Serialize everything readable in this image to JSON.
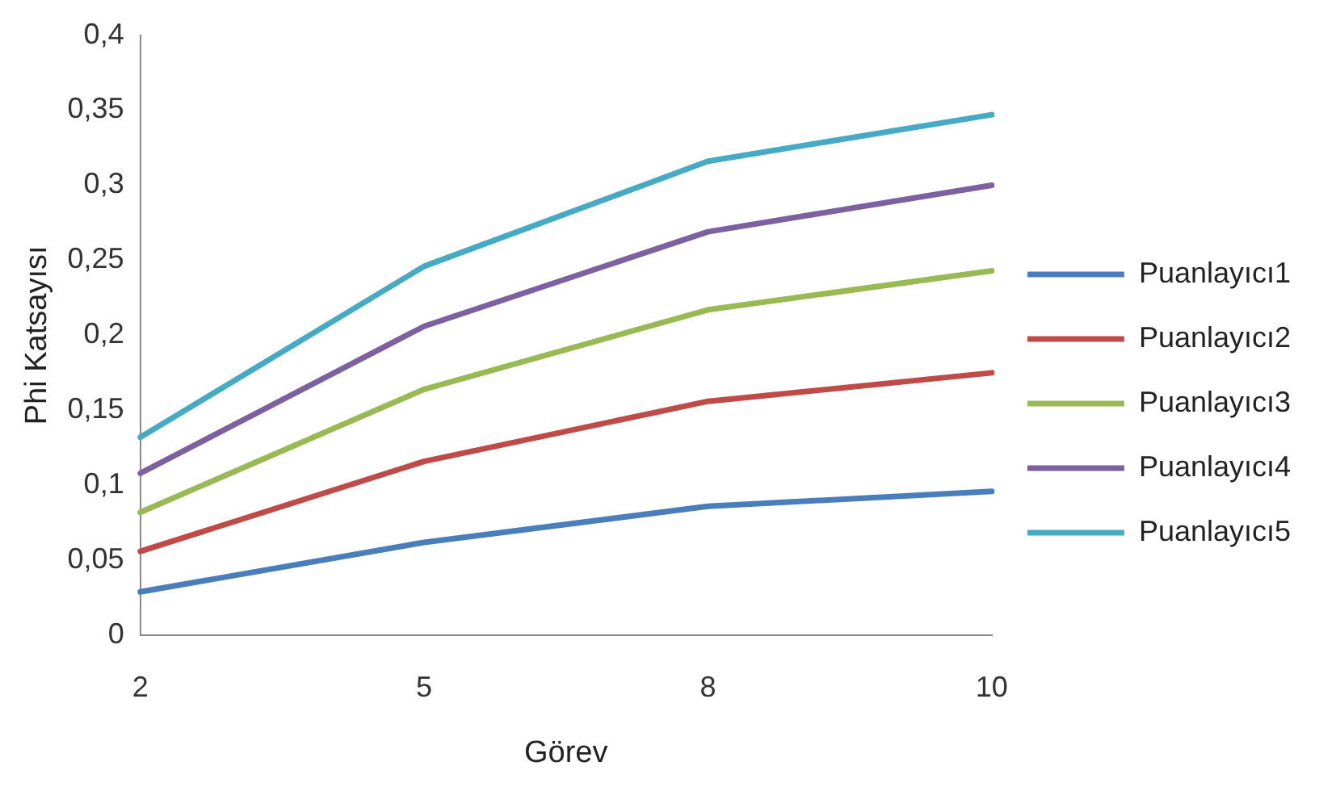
{
  "chart_data": {
    "type": "line",
    "xlabel": "Görev",
    "ylabel": "Phi Katsayısı",
    "categories": [
      "2",
      "5",
      "8",
      "10"
    ],
    "series": [
      {
        "name": "Puanlayıcı1",
        "color": "#4a7ebb",
        "values": [
          0.029,
          0.062,
          0.086,
          0.096
        ]
      },
      {
        "name": "Puanlayıcı2",
        "color": "#be4b48",
        "values": [
          0.056,
          0.116,
          0.156,
          0.175
        ]
      },
      {
        "name": "Puanlayıcı3",
        "color": "#98b954",
        "values": [
          0.082,
          0.164,
          0.217,
          0.243
        ]
      },
      {
        "name": "Puanlayıcı4",
        "color": "#7d60a0",
        "values": [
          0.108,
          0.206,
          0.269,
          0.3
        ]
      },
      {
        "name": "Puanlayıcı5",
        "color": "#46aac5",
        "values": [
          0.132,
          0.246,
          0.316,
          0.347
        ]
      }
    ],
    "ylim": [
      0,
      0.4
    ],
    "yticks": [
      0,
      {
        "value": 0.05,
        "label": "0,05"
      },
      {
        "value": 0.1,
        "label": "0,1"
      },
      {
        "value": 0.15,
        "label": "0,15"
      },
      {
        "value": 0.2,
        "label": "0,2"
      },
      {
        "value": 0.25,
        "label": "0,25"
      },
      {
        "value": 0.3,
        "label": "0,3"
      },
      {
        "value": 0.35,
        "label": "0,35"
      },
      {
        "value": 0.4,
        "label": "0,4"
      }
    ],
    "grid": false,
    "legend": "right",
    "marker": "none",
    "line_style": "solid"
  }
}
